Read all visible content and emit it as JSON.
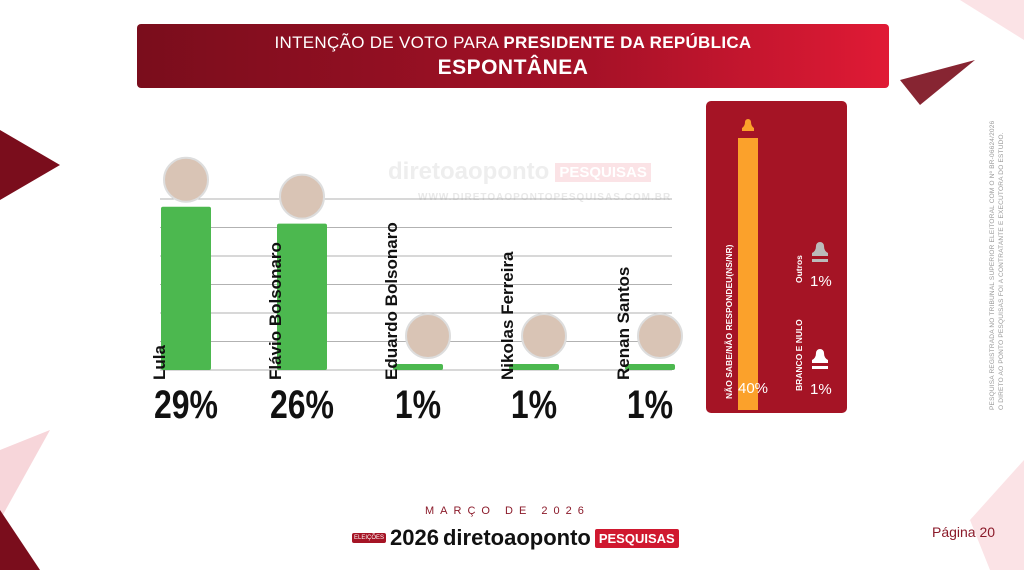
{
  "header": {
    "title_prefix": "INTENÇÃO DE VOTO PARA",
    "title_bold": "PRESIDENTE DA REPÚBLICA",
    "subtitle": "ESPONTÂNEA"
  },
  "watermark": {
    "brand": "diretoaoponto",
    "badge": "PESQUISAS",
    "url": "WWW.DIRETOAOPONTOPESQUISAS.COM.BR"
  },
  "colors": {
    "bar": "#4cb84f",
    "orange": "#fba12b",
    "panel": "#a51425"
  },
  "chart_data": {
    "type": "bar",
    "title": "INTENÇÃO DE VOTO PARA PRESIDENTE DA REPÚBLICA - ESPONTÂNEA",
    "categories": [
      "Lula",
      "Flávio Bolsonaro",
      "Eduardo Bolsonaro",
      "Nikolas Ferreira",
      "Renan Santos"
    ],
    "values": [
      29,
      26,
      1,
      1,
      1
    ],
    "labels": [
      "29%",
      "26%",
      "1%",
      "1%",
      "1%"
    ],
    "ylim": [
      0,
      30
    ],
    "grid": true
  },
  "others": [
    {
      "label": "NÃO SABE/NÃO RESPONDEU(NS/NR)",
      "value": 40,
      "text": "40%"
    },
    {
      "label": "Outros",
      "value": 1,
      "text": "1%"
    },
    {
      "label": "BRANCO E NULO",
      "value": 1,
      "text": "1%"
    }
  ],
  "side_note": [
    "PESQUISA REGISTRADA NO TRIBUNAL SUPERIOR ELEITORAL COM O Nº BR-06624/2026",
    "O DIRETO AO PONTO PESQUISAS FOI A CONTRATANTE E EXECUTORA DO ESTUDO."
  ],
  "footer": {
    "month": "MARÇO DE 2026",
    "badge": "ELEIÇÕES",
    "year": "2026",
    "brand": "diretoaoponto",
    "pesquisas": "PESQUISAS",
    "page": "Página 20"
  }
}
